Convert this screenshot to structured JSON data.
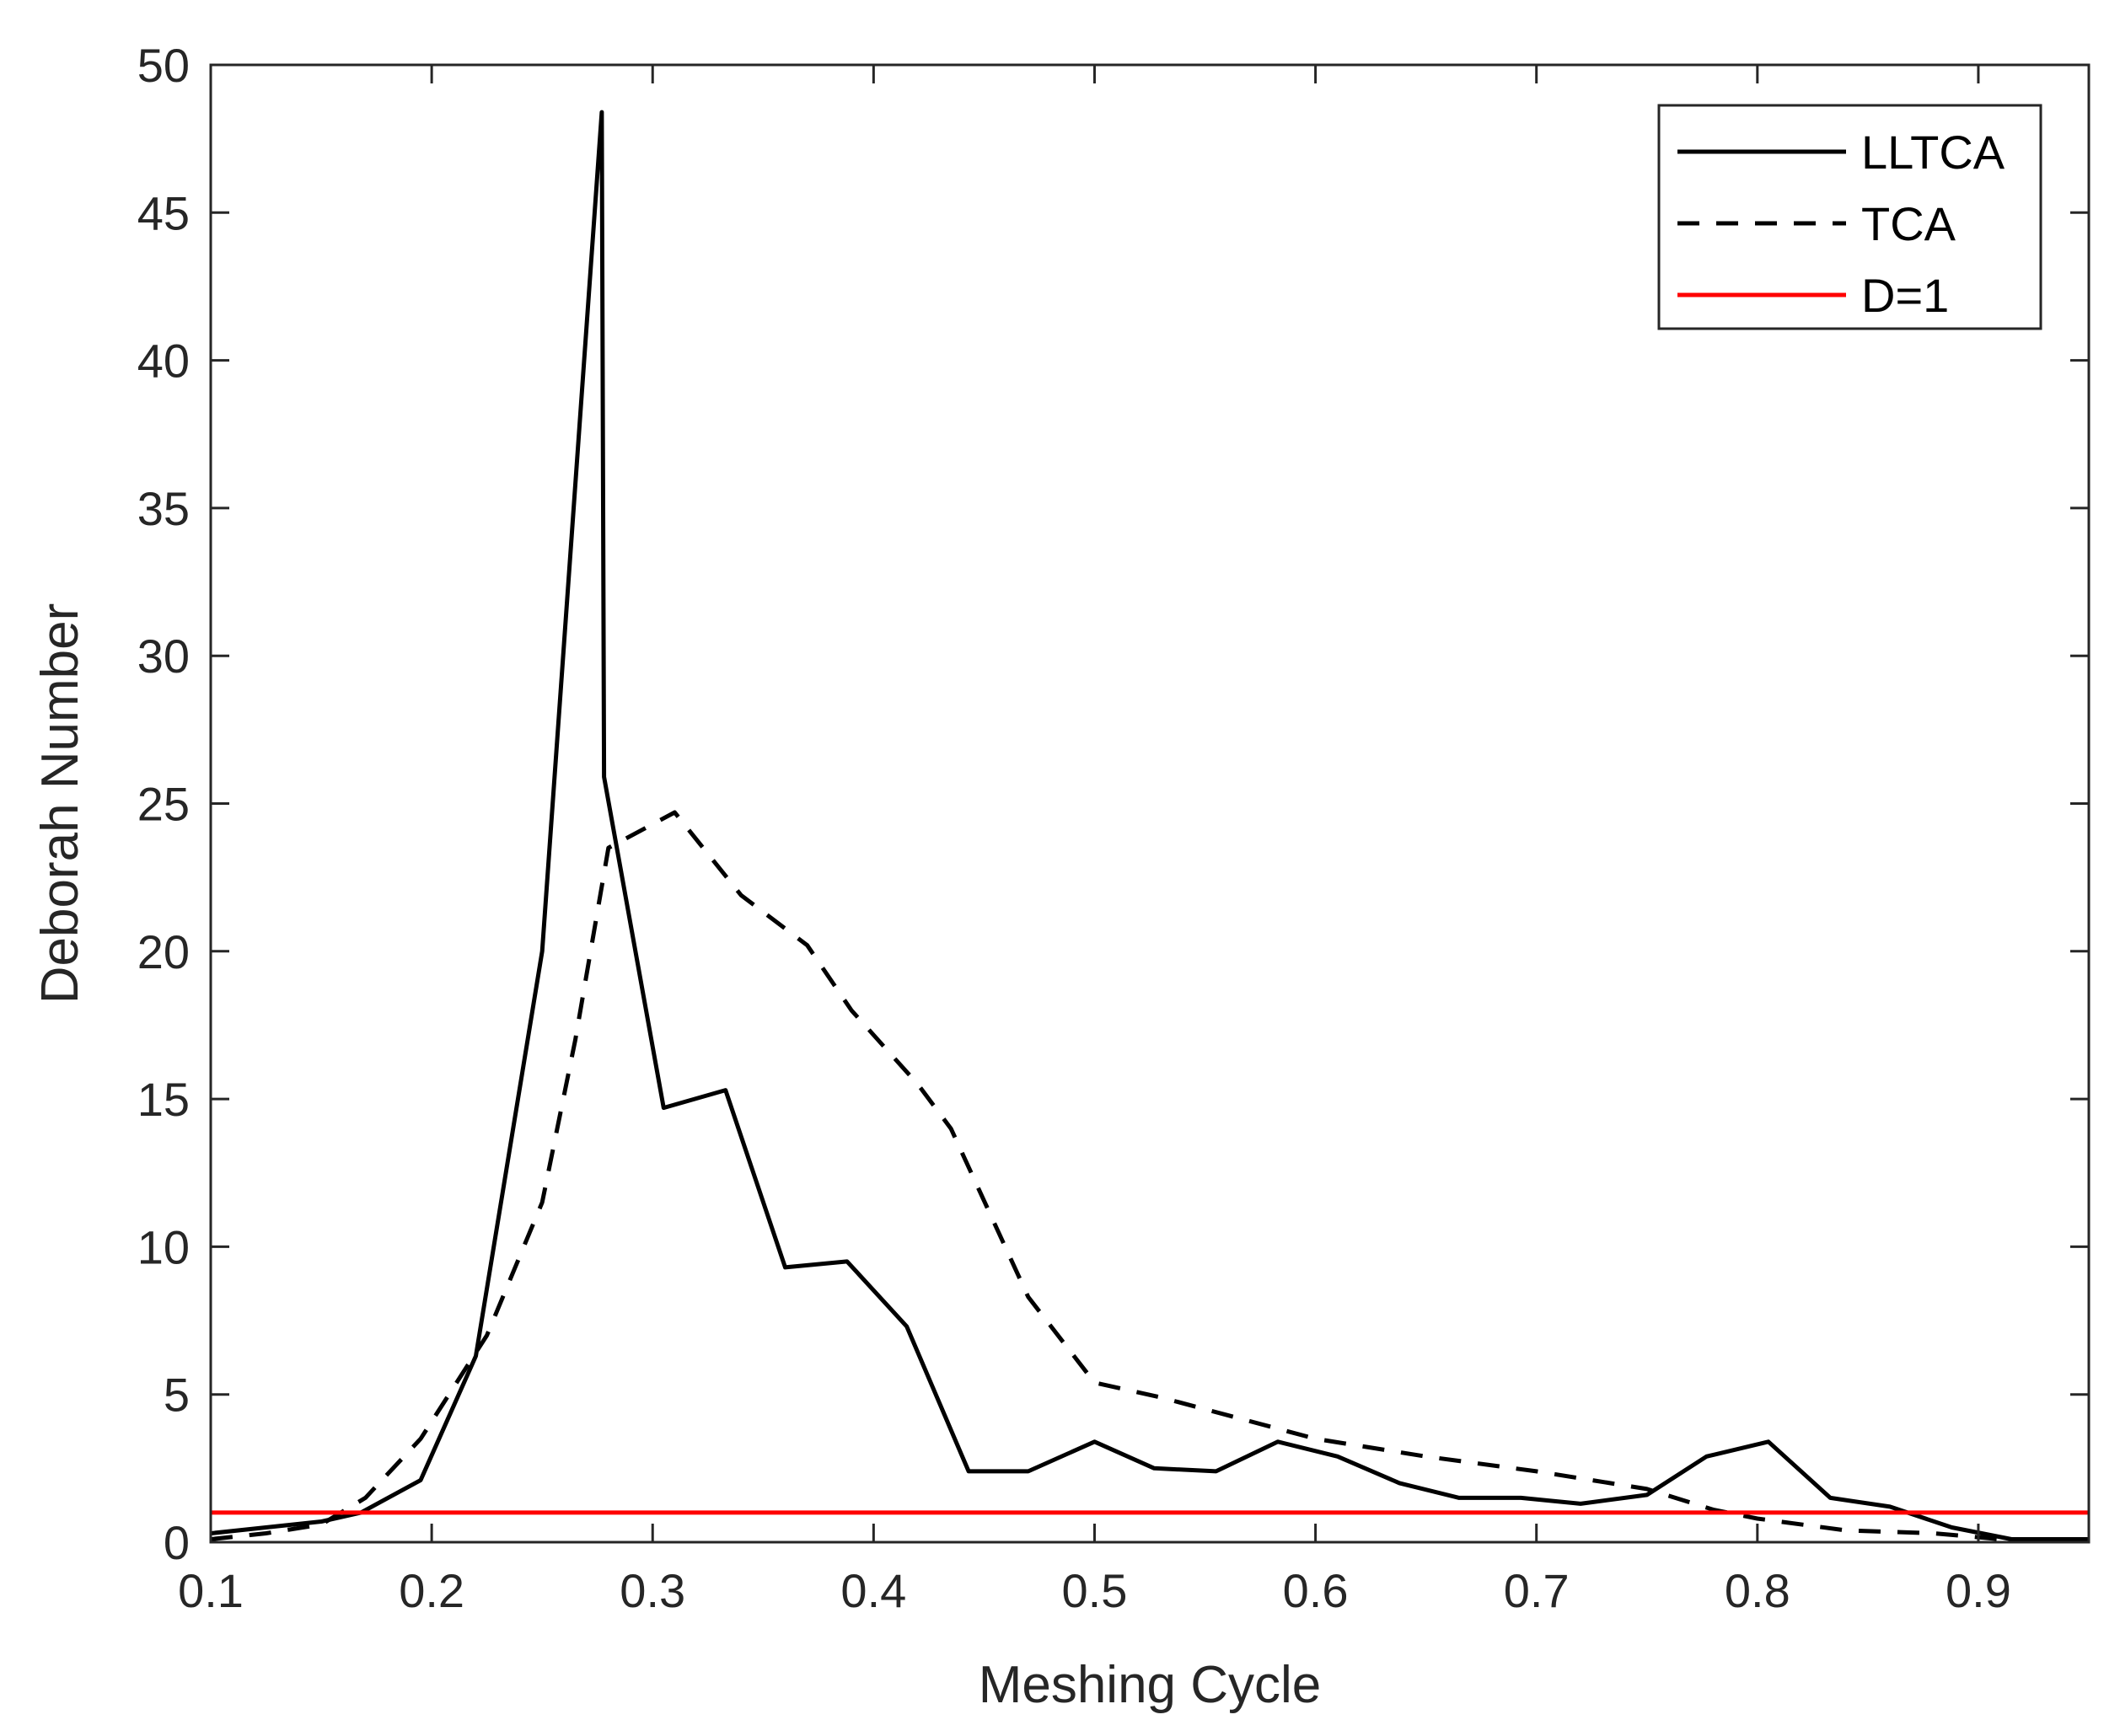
{
  "chart_data": {
    "type": "line",
    "xlabel": "Meshing Cycle",
    "ylabel": "Deborah Number",
    "xlim": [
      0.1,
      0.95
    ],
    "ylim": [
      0,
      50
    ],
    "xticks": [
      0.1,
      0.2,
      0.3,
      0.4,
      0.5,
      0.6,
      0.7,
      0.8,
      0.9
    ],
    "xtick_labels": [
      "0.1",
      "0.2",
      "0.3",
      "0.4",
      "0.5",
      "0.6",
      "0.7",
      "0.8",
      "0.9"
    ],
    "yticks": [
      0,
      5,
      10,
      15,
      20,
      25,
      30,
      35,
      40,
      45,
      50
    ],
    "ytick_labels": [
      "0",
      "5",
      "10",
      "15",
      "20",
      "25",
      "30",
      "35",
      "40",
      "45",
      "50"
    ],
    "grid": false,
    "legend_position": "top-right",
    "series": [
      {
        "name": "LLTCA",
        "color": "#000000",
        "style": "solid",
        "x": [
          0.1,
          0.125,
          0.15,
          0.168,
          0.195,
          0.22,
          0.25,
          0.277,
          0.278,
          0.305,
          0.333,
          0.36,
          0.388,
          0.415,
          0.443,
          0.47,
          0.5,
          0.527,
          0.555,
          0.583,
          0.61,
          0.638,
          0.665,
          0.693,
          0.72,
          0.75,
          0.777,
          0.805,
          0.833,
          0.86,
          0.888,
          0.915,
          0.95
        ],
        "y": [
          0.3,
          0.5,
          0.7,
          1.0,
          2.1,
          6.3,
          20.0,
          48.4,
          25.9,
          14.7,
          15.3,
          9.3,
          9.5,
          7.3,
          2.4,
          2.4,
          3.4,
          2.5,
          2.4,
          3.4,
          2.9,
          2.0,
          1.5,
          1.5,
          1.3,
          1.6,
          2.9,
          3.4,
          1.5,
          1.2,
          0.5,
          0.1,
          0.1
        ]
      },
      {
        "name": "TCA",
        "color": "#000000",
        "style": "dashed",
        "x": [
          0.1,
          0.125,
          0.15,
          0.17,
          0.195,
          0.225,
          0.25,
          0.265,
          0.28,
          0.31,
          0.34,
          0.37,
          0.39,
          0.42,
          0.435,
          0.47,
          0.5,
          0.53,
          0.56,
          0.6,
          0.65,
          0.7,
          0.75,
          0.78,
          0.8,
          0.84,
          0.88,
          0.91,
          0.95
        ],
        "y": [
          0.1,
          0.3,
          0.6,
          1.5,
          3.5,
          7.0,
          11.5,
          17.0,
          23.5,
          24.7,
          21.9,
          20.2,
          18.0,
          15.5,
          14.0,
          8.3,
          5.4,
          4.9,
          4.3,
          3.5,
          2.9,
          2.4,
          1.8,
          1.1,
          0.8,
          0.4,
          0.3,
          0.1,
          0.0
        ]
      },
      {
        "name": "D=1",
        "color": "#ff0000",
        "style": "solid",
        "x": [
          0.1,
          0.95
        ],
        "y": [
          1.0,
          1.0
        ]
      }
    ]
  }
}
